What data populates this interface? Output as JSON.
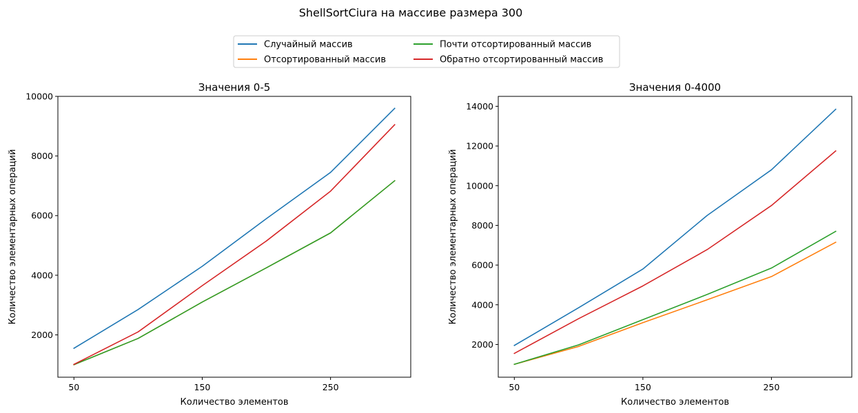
{
  "figure": {
    "title": "ShellSortCiura на массиве размера 300"
  },
  "legend": {
    "placement": "top-center",
    "entries": [
      {
        "label": "Случайный массив",
        "color": "#1f77b4"
      },
      {
        "label": "Отсортированный массив",
        "color": "#ff7f0e"
      },
      {
        "label": "Почти отсортированный массив",
        "color": "#2ca02c"
      },
      {
        "label": "Обратно отсортированный массив",
        "color": "#d62728"
      }
    ]
  },
  "chart_data": [
    {
      "type": "line",
      "title": "Значения 0-5",
      "xlabel": "Количество элементов",
      "ylabel": "Количество элементарных операций",
      "x": [
        50,
        100,
        150,
        200,
        250,
        300
      ],
      "xticks": [
        50,
        150,
        250
      ],
      "yticks": [
        2000,
        4000,
        6000,
        8000,
        10000
      ],
      "xlim": [
        37.5,
        312.5
      ],
      "ylim": [
        580,
        10000
      ],
      "grid": false,
      "series": [
        {
          "name": "Случайный массив",
          "color": "#1f77b4",
          "values": [
            1550,
            2850,
            4300,
            5900,
            7450,
            9600
          ]
        },
        {
          "name": "Отсортированный массив",
          "color": "#ff7f0e",
          "values": [
            1000,
            1880,
            3100,
            4250,
            5420,
            7170
          ]
        },
        {
          "name": "Почти отсортированный массив",
          "color": "#2ca02c",
          "values": [
            1000,
            1880,
            3100,
            4250,
            5420,
            7170
          ]
        },
        {
          "name": "Обратно отсортированный массив",
          "color": "#d62728",
          "values": [
            1010,
            2100,
            3650,
            5150,
            6820,
            9050
          ]
        }
      ]
    },
    {
      "type": "line",
      "title": "Значения 0-4000",
      "xlabel": "Количество элементов",
      "ylabel": "Количество элементарных операций",
      "x": [
        50,
        100,
        150,
        200,
        250,
        300
      ],
      "xticks": [
        50,
        150,
        250
      ],
      "yticks": [
        2000,
        4000,
        6000,
        8000,
        10000,
        12000,
        14000
      ],
      "xlim": [
        37.5,
        312.5
      ],
      "ylim": [
        350,
        14500
      ],
      "grid": false,
      "series": [
        {
          "name": "Случайный массив",
          "color": "#1f77b4",
          "values": [
            1950,
            3850,
            5800,
            8500,
            10800,
            13850
          ]
        },
        {
          "name": "Отсортированный массив",
          "color": "#ff7f0e",
          "values": [
            1000,
            1900,
            3100,
            4250,
            5420,
            7150
          ]
        },
        {
          "name": "Почти отсортированный массив",
          "color": "#2ca02c",
          "values": [
            1000,
            1980,
            3250,
            4520,
            5850,
            7700
          ]
        },
        {
          "name": "Обратно отсортированный массив",
          "color": "#d62728",
          "values": [
            1550,
            3300,
            4950,
            6780,
            9000,
            11750
          ]
        }
      ]
    }
  ]
}
